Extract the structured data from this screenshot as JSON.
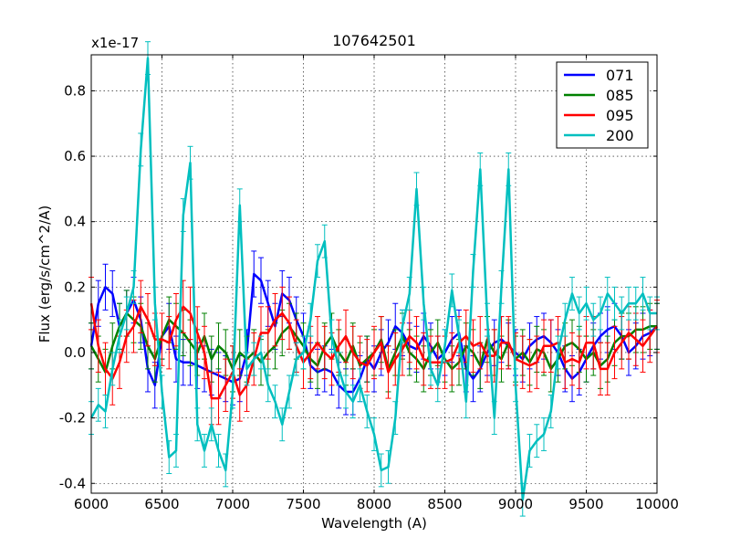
{
  "chart_data": {
    "type": "line",
    "title": "107642501",
    "xlabel": "Wavelength (A)",
    "ylabel": "Flux (erg/s/cm^2/A)",
    "y_offset_label": "x1e-17",
    "xlim": [
      6000,
      10000
    ],
    "ylim": [
      -0.43,
      0.91
    ],
    "xticks": [
      6000,
      6500,
      7000,
      7500,
      8000,
      8500,
      9000,
      9500,
      10000
    ],
    "yticks": [
      -0.4,
      -0.2,
      0.0,
      0.2,
      0.4,
      0.6,
      0.8
    ],
    "ytick_labels": [
      "-0.4",
      "-0.2",
      "0.0",
      "0.2",
      "0.4",
      "0.6",
      "0.8"
    ],
    "grid": true,
    "legend_position": "top-right",
    "series": [
      {
        "name": "071",
        "color": "#0000ff",
        "x": [
          6000,
          6050,
          6100,
          6150,
          6200,
          6250,
          6300,
          6350,
          6400,
          6450,
          6500,
          6550,
          6600,
          6650,
          6700,
          6750,
          6800,
          6850,
          6900,
          6950,
          7000,
          7050,
          7100,
          7150,
          7200,
          7250,
          7300,
          7350,
          7400,
          7450,
          7500,
          7550,
          7600,
          7650,
          7700,
          7750,
          7800,
          7850,
          7900,
          7950,
          8000,
          8050,
          8100,
          8150,
          8200,
          8250,
          8300,
          8350,
          8400,
          8450,
          8500,
          8550,
          8600,
          8650,
          8700,
          8750,
          8800,
          8850,
          8900,
          8950,
          9000,
          9050,
          9100,
          9150,
          9200,
          9250,
          9300,
          9350,
          9400,
          9450,
          9500,
          9550,
          9600,
          9650,
          9700,
          9750,
          9800,
          9850,
          9900,
          9950,
          10000
        ],
        "y": [
          0.02,
          0.15,
          0.2,
          0.18,
          0.08,
          0.12,
          0.16,
          0.1,
          -0.05,
          -0.1,
          0.05,
          0.08,
          -0.02,
          -0.03,
          -0.03,
          -0.04,
          -0.05,
          -0.06,
          -0.07,
          -0.08,
          -0.09,
          -0.08,
          0.0,
          0.24,
          0.22,
          0.15,
          0.08,
          0.18,
          0.16,
          0.1,
          0.05,
          -0.04,
          -0.06,
          -0.05,
          -0.06,
          -0.1,
          -0.12,
          -0.12,
          -0.08,
          -0.02,
          -0.05,
          0.0,
          0.03,
          0.08,
          0.06,
          0.02,
          0.01,
          0.05,
          0.02,
          -0.02,
          0.0,
          0.04,
          0.06,
          -0.05,
          -0.08,
          -0.05,
          0.0,
          0.03,
          0.04,
          0.02,
          0.0,
          -0.02,
          0.02,
          0.04,
          0.05,
          0.03,
          0.0,
          -0.05,
          -0.08,
          -0.06,
          -0.02,
          0.02,
          0.05,
          0.07,
          0.08,
          0.05,
          0.0,
          0.02,
          0.05,
          0.06,
          0.08
        ],
        "err": [
          0.07,
          0.07,
          0.07,
          0.07,
          0.07,
          0.07,
          0.07,
          0.07,
          0.07,
          0.07,
          0.07,
          0.07,
          0.07,
          0.07,
          0.07,
          0.07,
          0.07,
          0.07,
          0.07,
          0.07,
          0.07,
          0.07,
          0.07,
          0.07,
          0.07,
          0.07,
          0.07,
          0.07,
          0.07,
          0.07,
          0.07,
          0.07,
          0.07,
          0.07,
          0.07,
          0.07,
          0.07,
          0.07,
          0.07,
          0.07,
          0.07,
          0.07,
          0.07,
          0.07,
          0.07,
          0.07,
          0.07,
          0.07,
          0.07,
          0.07,
          0.07,
          0.07,
          0.07,
          0.07,
          0.07,
          0.07,
          0.07,
          0.07,
          0.07,
          0.07,
          0.07,
          0.07,
          0.07,
          0.07,
          0.07,
          0.07,
          0.07,
          0.07,
          0.07,
          0.07,
          0.07,
          0.07,
          0.07,
          0.07,
          0.07,
          0.07,
          0.07,
          0.07,
          0.07,
          0.07,
          0.07
        ]
      },
      {
        "name": "085",
        "color": "#008000",
        "x": [
          6000,
          6050,
          6100,
          6150,
          6200,
          6250,
          6300,
          6350,
          6400,
          6450,
          6500,
          6550,
          6600,
          6650,
          6700,
          6750,
          6800,
          6850,
          6900,
          6950,
          7000,
          7050,
          7100,
          7150,
          7200,
          7250,
          7300,
          7350,
          7400,
          7450,
          7500,
          7550,
          7600,
          7650,
          7700,
          7750,
          7800,
          7850,
          7900,
          7950,
          8000,
          8050,
          8100,
          8150,
          8200,
          8250,
          8300,
          8350,
          8400,
          8450,
          8500,
          8550,
          8600,
          8650,
          8700,
          8750,
          8800,
          8850,
          8900,
          8950,
          9000,
          9050,
          9100,
          9150,
          9200,
          9250,
          9300,
          9350,
          9400,
          9450,
          9500,
          9550,
          9600,
          9650,
          9700,
          9750,
          9800,
          9850,
          9900,
          9950,
          10000
        ],
        "y": [
          0.02,
          -0.02,
          -0.06,
          0.02,
          0.08,
          0.12,
          0.1,
          0.08,
          0.02,
          -0.02,
          0.05,
          0.1,
          0.08,
          0.06,
          0.03,
          0.0,
          0.05,
          -0.02,
          0.02,
          0.0,
          -0.05,
          0.0,
          -0.02,
          0.0,
          -0.03,
          0.0,
          0.02,
          0.06,
          0.08,
          0.05,
          0.02,
          -0.02,
          -0.04,
          0.02,
          0.05,
          0.0,
          -0.03,
          0.02,
          -0.04,
          -0.02,
          0.0,
          0.04,
          -0.05,
          0.0,
          0.05,
          0.0,
          -0.02,
          -0.05,
          0.0,
          0.03,
          -0.02,
          -0.05,
          -0.03,
          0.02,
          0.0,
          -0.04,
          0.04,
          0.0,
          -0.02,
          0.03,
          -0.02,
          0.0,
          -0.03,
          0.01,
          0.0,
          -0.05,
          -0.02,
          0.02,
          0.03,
          0.01,
          -0.02,
          0.0,
          -0.04,
          -0.02,
          0.03,
          0.05,
          0.05,
          0.07,
          0.07,
          0.08,
          0.08
        ],
        "err": [
          0.07,
          0.07,
          0.07,
          0.07,
          0.07,
          0.07,
          0.07,
          0.07,
          0.07,
          0.07,
          0.07,
          0.07,
          0.07,
          0.07,
          0.07,
          0.07,
          0.07,
          0.07,
          0.07,
          0.07,
          0.07,
          0.07,
          0.07,
          0.07,
          0.07,
          0.07,
          0.07,
          0.07,
          0.07,
          0.07,
          0.07,
          0.07,
          0.07,
          0.07,
          0.07,
          0.07,
          0.07,
          0.07,
          0.07,
          0.07,
          0.07,
          0.07,
          0.07,
          0.07,
          0.07,
          0.07,
          0.07,
          0.07,
          0.07,
          0.07,
          0.07,
          0.07,
          0.07,
          0.07,
          0.07,
          0.07,
          0.07,
          0.07,
          0.07,
          0.07,
          0.07,
          0.07,
          0.07,
          0.07,
          0.07,
          0.07,
          0.07,
          0.07,
          0.07,
          0.07,
          0.07,
          0.07,
          0.07,
          0.07,
          0.07,
          0.07,
          0.07,
          0.07,
          0.07,
          0.07,
          0.07
        ]
      },
      {
        "name": "095",
        "color": "#ff0000",
        "x": [
          6000,
          6050,
          6100,
          6150,
          6200,
          6250,
          6300,
          6350,
          6400,
          6450,
          6500,
          6550,
          6600,
          6650,
          6700,
          6750,
          6800,
          6850,
          6900,
          6950,
          7000,
          7050,
          7100,
          7150,
          7200,
          7250,
          7300,
          7350,
          7400,
          7450,
          7500,
          7550,
          7600,
          7650,
          7700,
          7750,
          7800,
          7850,
          7900,
          7950,
          8000,
          8050,
          8100,
          8150,
          8200,
          8250,
          8300,
          8350,
          8400,
          8450,
          8500,
          8550,
          8600,
          8650,
          8700,
          8750,
          8800,
          8850,
          8900,
          8950,
          9000,
          9050,
          9100,
          9150,
          9200,
          9250,
          9300,
          9350,
          9400,
          9450,
          9500,
          9550,
          9600,
          9650,
          9700,
          9750,
          9800,
          9850,
          9900,
          9950,
          10000
        ],
        "y": [
          0.15,
          0.02,
          -0.05,
          -0.08,
          -0.03,
          0.05,
          0.08,
          0.14,
          0.1,
          0.04,
          0.04,
          0.03,
          0.1,
          0.14,
          0.12,
          0.06,
          0.0,
          -0.14,
          -0.14,
          -0.1,
          -0.06,
          -0.13,
          -0.1,
          -0.02,
          0.06,
          0.06,
          0.1,
          0.12,
          0.09,
          0.02,
          -0.03,
          0.0,
          0.03,
          0.0,
          -0.02,
          0.02,
          0.05,
          0.0,
          -0.03,
          -0.04,
          0.0,
          0.03,
          -0.06,
          -0.02,
          0.01,
          0.05,
          0.03,
          -0.02,
          -0.03,
          -0.03,
          -0.03,
          -0.02,
          0.03,
          0.05,
          0.02,
          0.03,
          -0.01,
          -0.01,
          0.03,
          0.03,
          -0.02,
          -0.03,
          -0.04,
          -0.03,
          0.02,
          0.02,
          0.03,
          -0.03,
          -0.02,
          -0.03,
          0.03,
          0.03,
          -0.05,
          -0.05,
          0.0,
          0.03,
          0.06,
          0.04,
          0.02,
          0.05,
          0.08
        ],
        "err": [
          0.08,
          0.08,
          0.08,
          0.08,
          0.08,
          0.08,
          0.08,
          0.08,
          0.08,
          0.08,
          0.08,
          0.08,
          0.08,
          0.08,
          0.08,
          0.08,
          0.08,
          0.08,
          0.08,
          0.08,
          0.08,
          0.08,
          0.08,
          0.08,
          0.08,
          0.08,
          0.08,
          0.08,
          0.08,
          0.08,
          0.08,
          0.08,
          0.08,
          0.08,
          0.08,
          0.08,
          0.08,
          0.08,
          0.08,
          0.08,
          0.08,
          0.08,
          0.08,
          0.08,
          0.08,
          0.08,
          0.08,
          0.08,
          0.08,
          0.08,
          0.08,
          0.08,
          0.08,
          0.08,
          0.08,
          0.08,
          0.08,
          0.08,
          0.08,
          0.08,
          0.08,
          0.08,
          0.08,
          0.08,
          0.08,
          0.08,
          0.08,
          0.08,
          0.08,
          0.08,
          0.08,
          0.08,
          0.08,
          0.08,
          0.08,
          0.08,
          0.08,
          0.08,
          0.08,
          0.08,
          0.08
        ]
      },
      {
        "name": "200",
        "color": "#00bfbf",
        "x": [
          6000,
          6050,
          6100,
          6150,
          6200,
          6250,
          6300,
          6350,
          6400,
          6450,
          6500,
          6550,
          6600,
          6650,
          6700,
          6750,
          6800,
          6850,
          6900,
          6950,
          7000,
          7050,
          7100,
          7150,
          7200,
          7250,
          7300,
          7350,
          7400,
          7450,
          7500,
          7550,
          7600,
          7650,
          7700,
          7750,
          7800,
          7850,
          7900,
          7950,
          8000,
          8050,
          8100,
          8150,
          8200,
          8250,
          8300,
          8350,
          8400,
          8450,
          8500,
          8550,
          8600,
          8650,
          8700,
          8750,
          8800,
          8850,
          8900,
          8950,
          9000,
          9050,
          9100,
          9150,
          9200,
          9250,
          9300,
          9350,
          9400,
          9450,
          9500,
          9550,
          9600,
          9650,
          9700,
          9750,
          9800,
          9850,
          9900,
          9950,
          10000
        ],
        "y": [
          -0.2,
          -0.16,
          -0.18,
          -0.05,
          0.05,
          0.12,
          0.2,
          0.62,
          0.9,
          0.15,
          -0.12,
          -0.32,
          -0.3,
          0.42,
          0.58,
          -0.22,
          -0.3,
          -0.22,
          -0.3,
          -0.36,
          -0.12,
          0.45,
          -0.05,
          -0.02,
          0.0,
          -0.1,
          -0.15,
          -0.22,
          -0.12,
          -0.02,
          0.0,
          0.1,
          0.28,
          0.34,
          0.05,
          -0.05,
          -0.12,
          -0.15,
          -0.1,
          -0.18,
          -0.25,
          -0.36,
          -0.35,
          -0.2,
          0.08,
          0.18,
          0.5,
          0.15,
          -0.05,
          -0.1,
          0.02,
          0.19,
          0.05,
          -0.15,
          0.25,
          0.56,
          0.1,
          -0.2,
          0.2,
          0.56,
          -0.1,
          -0.45,
          -0.3,
          -0.27,
          -0.25,
          -0.18,
          0.0,
          0.1,
          0.18,
          0.12,
          0.15,
          0.1,
          0.12,
          0.18,
          0.15,
          0.12,
          0.15,
          0.15,
          0.18,
          0.12,
          0.12
        ],
        "err": [
          0.05,
          0.05,
          0.05,
          0.05,
          0.05,
          0.05,
          0.05,
          0.05,
          0.05,
          0.05,
          0.05,
          0.05,
          0.05,
          0.05,
          0.05,
          0.05,
          0.05,
          0.05,
          0.05,
          0.05,
          0.05,
          0.05,
          0.05,
          0.05,
          0.05,
          0.05,
          0.05,
          0.05,
          0.05,
          0.05,
          0.05,
          0.05,
          0.05,
          0.05,
          0.05,
          0.05,
          0.05,
          0.05,
          0.05,
          0.05,
          0.05,
          0.05,
          0.05,
          0.05,
          0.05,
          0.05,
          0.05,
          0.05,
          0.05,
          0.05,
          0.05,
          0.05,
          0.05,
          0.05,
          0.05,
          0.05,
          0.05,
          0.05,
          0.05,
          0.05,
          0.05,
          0.05,
          0.05,
          0.05,
          0.05,
          0.05,
          0.05,
          0.05,
          0.05,
          0.05,
          0.05,
          0.05,
          0.05,
          0.05,
          0.05,
          0.05,
          0.05,
          0.05,
          0.05,
          0.05,
          0.05
        ]
      }
    ]
  }
}
